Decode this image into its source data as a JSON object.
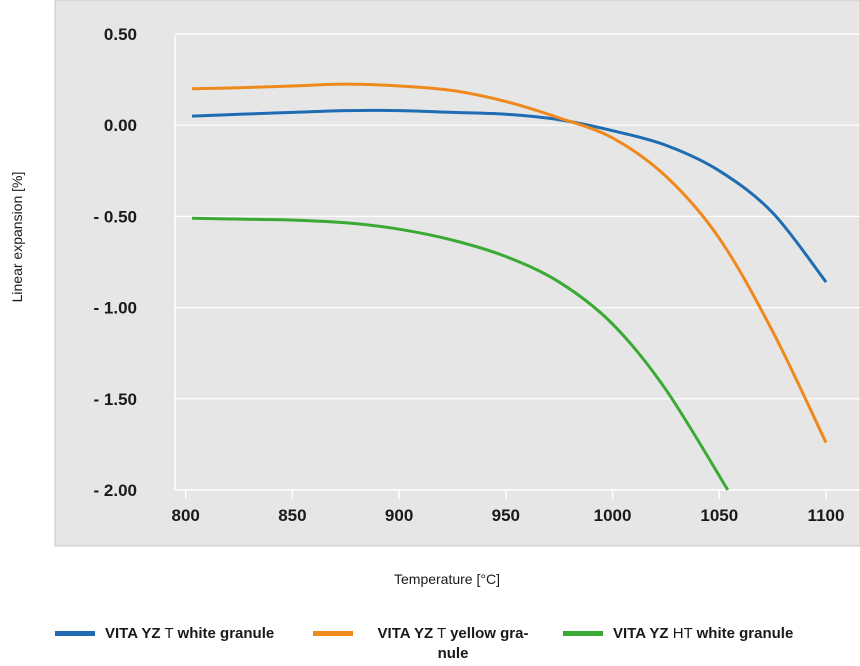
{
  "chart_data": {
    "type": "line",
    "xlabel": "Temperature [°C]",
    "ylabel": "Linear expansion [%]",
    "x_ticks": [
      800,
      850,
      900,
      950,
      1000,
      1050,
      1100
    ],
    "x_tick_labels": [
      "800",
      "850",
      "900",
      "950",
      "1000",
      "1050",
      "1100"
    ],
    "y_ticks": [
      0.5,
      0.0,
      -0.5,
      -1.0,
      -1.5,
      -2.0
    ],
    "y_tick_labels": [
      "0.50",
      "0.00",
      "- 0.50",
      "- 1.00",
      "- 1.50",
      "- 2.00"
    ],
    "xlim": [
      795,
      1100
    ],
    "ylim": [
      -2.0,
      0.5
    ],
    "grid": "horizontal",
    "legend_position": "bottom",
    "series": [
      {
        "name": "VITA YZ T white granule",
        "legend_brand": "VITA YZ",
        "legend_variant": "T",
        "legend_rest": "white granule",
        "color": "#1f6cb3",
        "x": [
          803,
          825,
          850,
          875,
          900,
          925,
          950,
          975,
          1000,
          1025,
          1050,
          1075,
          1100
        ],
        "y": [
          0.05,
          0.06,
          0.07,
          0.08,
          0.08,
          0.07,
          0.06,
          0.03,
          -0.03,
          -0.11,
          -0.25,
          -0.48,
          -0.86
        ]
      },
      {
        "name": "VITA YZ T yellow granule",
        "legend_brand": "VITA YZ",
        "legend_variant": "T",
        "legend_rest": "yellow gra-\nnule",
        "color": "#ee8a1d",
        "x": [
          803,
          825,
          850,
          875,
          900,
          925,
          950,
          975,
          1000,
          1025,
          1050,
          1075,
          1100
        ],
        "y": [
          0.2,
          0.205,
          0.215,
          0.225,
          0.215,
          0.19,
          0.13,
          0.04,
          -0.07,
          -0.28,
          -0.62,
          -1.13,
          -1.74
        ]
      },
      {
        "name": "VITA YZ HT white granule",
        "legend_brand": "VITA YZ",
        "legend_variant": "HT",
        "legend_rest": "white granule",
        "color": "#3aaa35",
        "x": [
          803,
          825,
          850,
          875,
          900,
          925,
          950,
          975,
          1000,
          1025,
          1054
        ],
        "y": [
          -0.51,
          -0.515,
          -0.52,
          -0.535,
          -0.57,
          -0.63,
          -0.72,
          -0.86,
          -1.09,
          -1.45,
          -2.0
        ]
      }
    ]
  }
}
